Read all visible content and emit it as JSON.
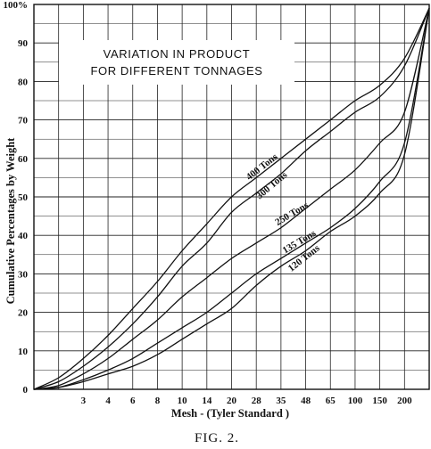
{
  "chart_data": {
    "type": "line",
    "title": [
      "VARIATION IN PRODUCT",
      "FOR DIFFERENT TONNAGES"
    ],
    "xlabel": "Mesh - (Tyler Standard )",
    "ylabel": "Cumulative Percentages by Weight",
    "caption": "FIG. 2.",
    "ylim": [
      0,
      100
    ],
    "y_ticks": [
      "0",
      "10",
      "20",
      "30",
      "40",
      "50",
      "60",
      "70",
      "80",
      "90",
      "100%"
    ],
    "x_ticks": [
      "3",
      "4",
      "6",
      "8",
      "10",
      "14",
      "20",
      "28",
      "35",
      "48",
      "65",
      "100",
      "150",
      "200"
    ],
    "x": [
      "",
      "",
      "3",
      "4",
      "6",
      "8",
      "10",
      "14",
      "20",
      "28",
      "35",
      "48",
      "65",
      "100",
      "150",
      "200",
      ""
    ],
    "series": [
      {
        "name": "400 Tons",
        "values": [
          0,
          3,
          8,
          14,
          21,
          28,
          36,
          43,
          50,
          55,
          60,
          65,
          70,
          75,
          79,
          86,
          99
        ]
      },
      {
        "name": "300 Tons",
        "values": [
          0,
          2,
          6,
          11,
          17,
          24,
          32,
          38,
          46,
          51,
          56,
          62,
          67,
          72,
          76,
          84,
          99
        ]
      },
      {
        "name": "250 Tons",
        "values": [
          0,
          1,
          4,
          8,
          13,
          18,
          24,
          29,
          34,
          38,
          42,
          47,
          52,
          57,
          64,
          72,
          99
        ]
      },
      {
        "name": "135 Tons",
        "values": [
          0,
          0.5,
          2.5,
          5,
          8,
          12,
          16,
          20,
          25,
          30,
          34,
          38,
          42,
          47,
          54,
          64,
          99
        ]
      },
      {
        "name": "120 Tons",
        "values": [
          0,
          0.5,
          2,
          4,
          6,
          9,
          13,
          17,
          21,
          27,
          32,
          36,
          41,
          45,
          51,
          61,
          99
        ]
      }
    ],
    "grid": true
  }
}
